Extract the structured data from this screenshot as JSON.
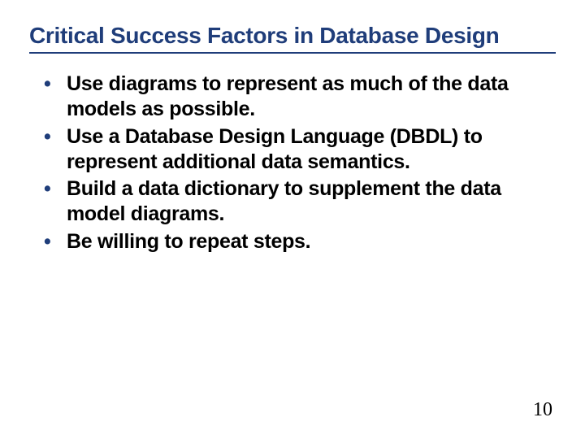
{
  "slide": {
    "title": "Critical Success Factors in Database Design",
    "bullets": [
      "Use diagrams to represent as much of the data models as possible.",
      "Use a Database Design Language (DBDL) to represent additional data semantics.",
      "Build a data dictionary to supplement the data model diagrams.",
      "Be willing to repeat steps."
    ],
    "page_number": "10"
  },
  "style": {
    "title_color": "#1f3d7a",
    "title_fontsize": 28,
    "title_fontweight": 700,
    "underline_color": "#1f3d7a",
    "underline_width": 2,
    "bullet_color": "#1f3d7a",
    "body_text_color": "#000000",
    "body_fontsize": 25,
    "body_fontweight": 700,
    "background_color": "#ffffff",
    "page_number_fontfamily": "serif",
    "page_number_fontsize": 24,
    "page_number_color": "#000000",
    "slide_width": 720,
    "slide_height": 540
  }
}
